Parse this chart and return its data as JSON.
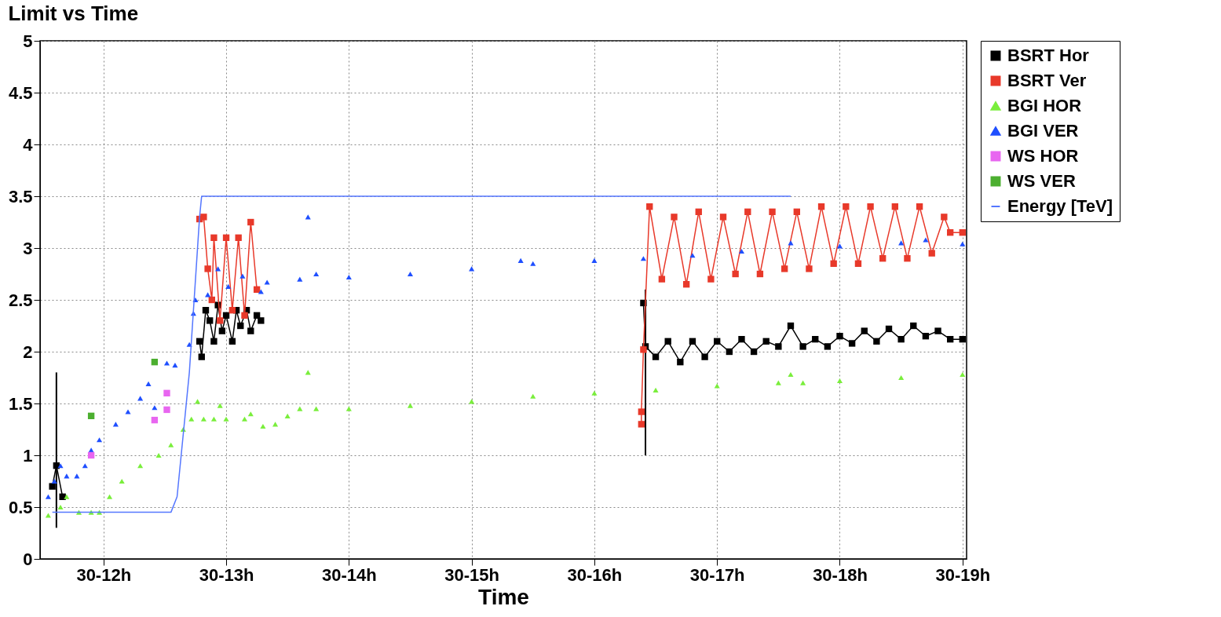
{
  "chart_data": {
    "type": "scatter",
    "title": "Limit vs Time",
    "xlabel": "Time",
    "xlim": [
      "--01-30T11:29",
      "--01-30T19:02"
    ],
    "xticks": [
      {
        "value": "--01-30T12:00",
        "label": "30-12h"
      },
      {
        "value": "--01-30T13:00",
        "label": "30-13h"
      },
      {
        "value": "--01-30T14:00",
        "label": "30-14h"
      },
      {
        "value": "--01-30T15:00",
        "label": "30-15h"
      },
      {
        "value": "--01-30T16:00",
        "label": "30-16h"
      },
      {
        "value": "--01-30T17:00",
        "label": "30-17h"
      },
      {
        "value": "--01-30T18:00",
        "label": "30-18h"
      },
      {
        "value": "--01-30T19:00",
        "label": "30-19h"
      }
    ],
    "ylim": [
      0,
      5
    ],
    "yticks": [
      0,
      0.5,
      1,
      1.5,
      2,
      2.5,
      3,
      3.5,
      4,
      4.5,
      5
    ],
    "grid": true,
    "legend": "top right",
    "series": [
      {
        "name": "BSRT Hor",
        "type": "line",
        "marker": "square",
        "color": "#000000",
        "x": [
          "--01-30T11:35",
          "--01-30T11:37",
          "--01-30T11:40",
          "--01-30T12:18",
          "--01-30T12:47",
          "--01-30T12:48",
          "--01-30T12:50",
          "--01-30T12:52",
          "--01-30T12:54",
          "--01-30T12:56",
          "--01-30T12:58",
          "--01-30T13:00",
          "--01-30T13:03",
          "--01-30T13:05",
          "--01-30T13:07",
          "--01-30T13:10",
          "--01-30T13:12",
          "--01-30T13:15",
          "--01-30T13:17",
          "--01-30T14:48",
          "--01-30T16:24",
          "--01-30T16:25",
          "--01-30T16:30",
          "--01-30T16:36",
          "--01-30T16:42",
          "--01-30T16:48",
          "--01-30T16:54",
          "--01-30T17:00",
          "--01-30T17:06",
          "--01-30T17:12",
          "--01-30T17:18",
          "--01-30T17:24",
          "--01-30T17:30",
          "--01-30T17:36",
          "--01-30T17:42",
          "--01-30T17:48",
          "--01-30T17:54",
          "--01-30T18:00",
          "--01-30T18:06",
          "--01-30T18:12",
          "--01-30T18:18",
          "--01-30T18:24",
          "--01-30T18:30",
          "--01-30T18:36",
          "--01-30T18:42",
          "--01-30T18:48",
          "--01-30T18:54",
          "--01-30T19:00"
        ],
        "values": [
          0.7,
          0.9,
          0.6,
          null,
          2.1,
          1.95,
          2.4,
          2.3,
          2.1,
          2.45,
          2.2,
          2.35,
          2.1,
          2.4,
          2.25,
          2.4,
          2.2,
          2.35,
          2.3,
          null,
          2.47,
          2.05,
          1.95,
          2.1,
          1.9,
          2.1,
          1.95,
          2.1,
          2.0,
          2.12,
          2.0,
          2.1,
          2.05,
          2.25,
          2.05,
          2.12,
          2.05,
          2.15,
          2.08,
          2.2,
          2.1,
          2.22,
          2.12,
          2.25,
          2.15,
          2.2,
          2.12,
          2.12
        ],
        "errors": [
          null,
          [
            0.3,
            1.8
          ],
          null,
          null,
          null,
          null,
          null,
          null,
          null,
          null,
          null,
          null,
          null,
          null,
          null,
          null,
          null,
          null,
          null,
          null,
          null,
          [
            1.0,
            2.6
          ],
          null,
          null,
          null,
          null,
          null,
          null,
          null,
          null,
          null,
          null,
          null,
          null,
          null,
          null,
          null,
          null,
          null,
          null,
          null,
          null,
          null,
          null,
          null,
          null,
          null,
          null
        ]
      },
      {
        "name": "BSRT Ver",
        "type": "line",
        "marker": "square",
        "color": "#e8392a",
        "x": [
          "--01-30T12:47",
          "--01-30T12:49",
          "--01-30T12:51",
          "--01-30T12:53",
          "--01-30T12:54",
          "--01-30T12:57",
          "--01-30T13:00",
          "--01-30T13:03",
          "--01-30T13:06",
          "--01-30T13:09",
          "--01-30T13:12",
          "--01-30T13:15",
          "--01-30T14:48",
          "--01-30T16:23",
          "--01-30T16:23",
          "--01-30T16:24",
          "--01-30T16:27",
          "--01-30T16:33",
          "--01-30T16:39",
          "--01-30T16:45",
          "--01-30T16:51",
          "--01-30T16:57",
          "--01-30T17:03",
          "--01-30T17:09",
          "--01-30T17:15",
          "--01-30T17:21",
          "--01-30T17:27",
          "--01-30T17:33",
          "--01-30T17:39",
          "--01-30T17:45",
          "--01-30T17:51",
          "--01-30T17:57",
          "--01-30T18:03",
          "--01-30T18:09",
          "--01-30T18:15",
          "--01-30T18:21",
          "--01-30T18:27",
          "--01-30T18:33",
          "--01-30T18:39",
          "--01-30T18:45",
          "--01-30T18:51",
          "--01-30T18:54",
          "--01-30T19:00"
        ],
        "values": [
          3.28,
          3.3,
          2.8,
          2.5,
          3.1,
          2.3,
          3.1,
          2.4,
          3.1,
          2.35,
          3.25,
          2.6,
          null,
          1.3,
          1.42,
          2.02,
          3.4,
          2.7,
          3.3,
          2.65,
          3.35,
          2.7,
          3.3,
          2.75,
          3.35,
          2.75,
          3.35,
          2.8,
          3.35,
          2.8,
          3.4,
          2.85,
          3.4,
          2.85,
          3.4,
          2.9,
          3.4,
          2.9,
          3.4,
          2.95,
          3.3,
          3.15,
          3.15
        ]
      },
      {
        "name": "BGI HOR",
        "marker": "triangle",
        "color": "#7aee3c",
        "x": [
          "--01-30T11:33",
          "--01-30T11:39",
          "--01-30T11:42",
          "--01-30T11:48",
          "--01-30T11:54",
          "--01-30T11:58",
          "--01-30T12:03",
          "--01-30T12:09",
          "--01-30T12:18",
          "--01-30T12:27",
          "--01-30T12:33",
          "--01-30T12:39",
          "--01-30T12:43",
          "--01-30T12:46",
          "--01-30T12:49",
          "--01-30T12:54",
          "--01-30T12:57",
          "--01-30T13:00",
          "--01-30T13:09",
          "--01-30T13:12",
          "--01-30T13:18",
          "--01-30T13:24",
          "--01-30T13:30",
          "--01-30T13:36",
          "--01-30T13:40",
          "--01-30T13:44",
          "--01-30T14:00",
          "--01-30T14:30",
          "--01-30T15:00",
          "--01-30T15:30",
          "--01-30T16:00",
          "--01-30T16:30",
          "--01-30T17:00",
          "--01-30T17:30",
          "--01-30T17:36",
          "--01-30T17:42",
          "--01-30T18:00",
          "--01-30T18:30",
          "--01-30T19:00"
        ],
        "values": [
          0.42,
          0.5,
          0.6,
          0.45,
          0.45,
          0.45,
          0.6,
          0.75,
          0.9,
          1.0,
          1.1,
          1.25,
          1.35,
          1.52,
          1.35,
          1.35,
          1.48,
          1.35,
          1.35,
          1.4,
          1.28,
          1.3,
          1.38,
          1.45,
          1.8,
          1.45,
          1.45,
          1.48,
          1.52,
          1.57,
          1.6,
          1.63,
          1.67,
          1.7,
          1.78,
          1.7,
          1.72,
          1.75,
          1.78
        ]
      },
      {
        "name": "BGI VER",
        "marker": "triangle",
        "color": "#1f4fff",
        "x": [
          "--01-30T11:33",
          "--01-30T11:36",
          "--01-30T11:39",
          "--01-30T11:42",
          "--01-30T11:47",
          "--01-30T11:51",
          "--01-30T11:54",
          "--01-30T11:58",
          "--01-30T12:06",
          "--01-30T12:12",
          "--01-30T12:18",
          "--01-30T12:22",
          "--01-30T12:25",
          "--01-30T12:31",
          "--01-30T12:35",
          "--01-30T12:42",
          "--01-30T12:44",
          "--01-30T12:45",
          "--01-30T12:51",
          "--01-30T12:56",
          "--01-30T13:01",
          "--01-30T13:08",
          "--01-30T13:17",
          "--01-30T13:20",
          "--01-30T13:36",
          "--01-30T13:40",
          "--01-30T13:44",
          "--01-30T14:00",
          "--01-30T14:30",
          "--01-30T15:00",
          "--01-30T15:24",
          "--01-30T15:30",
          "--01-30T16:00",
          "--01-30T16:24",
          "--01-30T16:48",
          "--01-30T17:12",
          "--01-30T17:36",
          "--01-30T18:00",
          "--01-30T18:30",
          "--01-30T18:42",
          "--01-30T19:00"
        ],
        "values": [
          0.6,
          0.75,
          0.9,
          0.8,
          0.8,
          0.9,
          1.05,
          1.15,
          1.3,
          1.42,
          1.55,
          1.69,
          1.46,
          1.89,
          1.87,
          2.07,
          2.37,
          2.5,
          2.55,
          2.8,
          2.63,
          2.73,
          2.58,
          2.67,
          2.7,
          3.3,
          2.75,
          2.72,
          2.75,
          2.8,
          2.88,
          2.85,
          2.88,
          2.9,
          2.93,
          2.97,
          3.05,
          3.02,
          3.05,
          3.08,
          3.04
        ]
      },
      {
        "name": "WS HOR",
        "marker": "square",
        "color": "#e866f0",
        "x": [
          "--01-30T11:54",
          "--01-30T12:25",
          "--01-30T12:31",
          "--01-30T12:31"
        ],
        "values": [
          1.0,
          1.34,
          1.44,
          1.6
        ]
      },
      {
        "name": "WS VER",
        "marker": "square",
        "color": "#4caf30",
        "x": [
          "--01-30T11:54",
          "--01-30T12:25"
        ],
        "values": [
          1.38,
          1.9
        ]
      },
      {
        "name": "Energy [TeV]",
        "type": "line",
        "marker": "none",
        "color": "#5577ff",
        "x": [
          "--01-30T11:35",
          "--01-30T12:33",
          "--01-30T12:36",
          "--01-30T12:42",
          "--01-30T12:47",
          "--01-30T12:48",
          "--01-30T17:36"
        ],
        "values": [
          0.45,
          0.45,
          0.6,
          1.8,
          3.3,
          3.5,
          3.5
        ]
      }
    ]
  }
}
